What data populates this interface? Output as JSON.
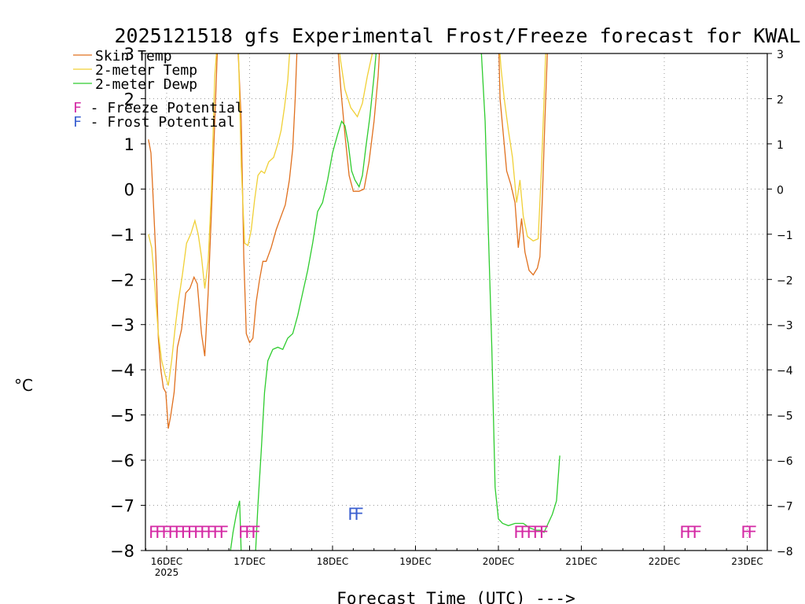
{
  "chart_data": {
    "type": "line",
    "title": "2025121518 gfs Experimental Frost/Freeze forecast for KWAL",
    "xlabel": "Forecast Time (UTC) --->",
    "ylabel": "°C",
    "ylim": [
      -8,
      3
    ],
    "xlim": [
      -0.2,
      7.3
    ],
    "y_ticks": [
      -8,
      -7,
      -6,
      -5,
      -4,
      -3,
      -2,
      -1,
      0,
      1,
      2,
      3
    ],
    "y_tick_labels": [
      "−8",
      "−7",
      "−6",
      "−5",
      "−4",
      "−3",
      "−2",
      "−1",
      "0",
      "1",
      "2",
      "3"
    ],
    "x_ticks": [
      {
        "label": "16DEC",
        "x": 0.0
      },
      {
        "label": "17DEC",
        "x": 1.0
      },
      {
        "label": "18DEC",
        "x": 2.0
      },
      {
        "label": "19DEC",
        "x": 3.0
      },
      {
        "label": "20DEC",
        "x": 4.0
      },
      {
        "label": "21DEC",
        "x": 5.0
      },
      {
        "label": "22DEC",
        "x": 6.0
      },
      {
        "label": "23DEC",
        "x": 7.0
      }
    ],
    "year_label": "2025",
    "grid": true,
    "legend_position": "top-left",
    "series": [
      {
        "name": "Skin Temp",
        "color": "#e0701e",
        "points": [
          [
            -0.22,
            1.1
          ],
          [
            -0.19,
            0.8
          ],
          [
            -0.16,
            -0.3
          ],
          [
            -0.13,
            -1.5
          ],
          [
            -0.1,
            -3.3
          ],
          [
            -0.07,
            -4.0
          ],
          [
            -0.04,
            -4.4
          ],
          [
            -0.01,
            -4.5
          ],
          [
            0.02,
            -5.3
          ],
          [
            0.05,
            -5.0
          ],
          [
            0.09,
            -4.5
          ],
          [
            0.13,
            -3.5
          ],
          [
            0.18,
            -3.1
          ],
          [
            0.23,
            -2.3
          ],
          [
            0.28,
            -2.2
          ],
          [
            0.33,
            -1.95
          ],
          [
            0.37,
            -2.1
          ],
          [
            0.42,
            -3.2
          ],
          [
            0.46,
            -3.7
          ],
          [
            0.5,
            -2.3
          ],
          [
            0.54,
            -0.5
          ],
          [
            0.58,
            1.5
          ],
          [
            0.62,
            3.5
          ],
          [
            0.85,
            3.5
          ],
          [
            0.9,
            1.5
          ],
          [
            0.93,
            -1.5
          ],
          [
            0.96,
            -3.2
          ],
          [
            1.0,
            -3.4
          ],
          [
            1.04,
            -3.3
          ],
          [
            1.08,
            -2.5
          ],
          [
            1.12,
            -2.0
          ],
          [
            1.16,
            -1.6
          ],
          [
            1.2,
            -1.6
          ],
          [
            1.26,
            -1.3
          ],
          [
            1.32,
            -0.9
          ],
          [
            1.38,
            -0.6
          ],
          [
            1.43,
            -0.35
          ],
          [
            1.48,
            0.2
          ],
          [
            1.52,
            0.9
          ],
          [
            1.55,
            2.0
          ],
          [
            1.58,
            3.5
          ],
          [
            2.05,
            3.5
          ],
          [
            2.1,
            2.2
          ],
          [
            2.15,
            1.2
          ],
          [
            2.2,
            0.3
          ],
          [
            2.25,
            -0.05
          ],
          [
            2.32,
            -0.05
          ],
          [
            2.38,
            0.0
          ],
          [
            2.44,
            0.6
          ],
          [
            2.5,
            1.5
          ],
          [
            2.55,
            2.5
          ],
          [
            2.58,
            3.5
          ],
          [
            4.0,
            3.5
          ],
          [
            4.02,
            2.0
          ],
          [
            4.06,
            1.2
          ],
          [
            4.1,
            0.4
          ],
          [
            4.15,
            0.1
          ],
          [
            4.2,
            -0.3
          ],
          [
            4.24,
            -1.3
          ],
          [
            4.28,
            -0.65
          ],
          [
            4.32,
            -1.4
          ],
          [
            4.37,
            -1.8
          ],
          [
            4.42,
            -1.9
          ],
          [
            4.47,
            -1.75
          ],
          [
            4.5,
            -1.5
          ],
          [
            4.53,
            -0.2
          ],
          [
            4.56,
            1.5
          ],
          [
            4.6,
            3.5
          ]
        ]
      },
      {
        "name": "2-meter Temp",
        "color": "#f0d036",
        "points": [
          [
            -0.22,
            -1.0
          ],
          [
            -0.18,
            -1.3
          ],
          [
            -0.14,
            -2.2
          ],
          [
            -0.1,
            -3.2
          ],
          [
            -0.06,
            -3.8
          ],
          [
            -0.02,
            -4.1
          ],
          [
            0.02,
            -4.35
          ],
          [
            0.06,
            -3.8
          ],
          [
            0.1,
            -3.1
          ],
          [
            0.14,
            -2.5
          ],
          [
            0.19,
            -1.9
          ],
          [
            0.24,
            -1.2
          ],
          [
            0.29,
            -1.0
          ],
          [
            0.34,
            -0.7
          ],
          [
            0.38,
            -1.0
          ],
          [
            0.42,
            -1.5
          ],
          [
            0.46,
            -2.2
          ],
          [
            0.5,
            -1.6
          ],
          [
            0.54,
            0.0
          ],
          [
            0.58,
            2.5
          ],
          [
            0.62,
            3.5
          ],
          [
            0.86,
            3.5
          ],
          [
            0.9,
            0.5
          ],
          [
            0.94,
            -1.2
          ],
          [
            0.98,
            -1.25
          ],
          [
            1.02,
            -0.9
          ],
          [
            1.06,
            -0.25
          ],
          [
            1.1,
            0.3
          ],
          [
            1.14,
            0.4
          ],
          [
            1.18,
            0.35
          ],
          [
            1.23,
            0.6
          ],
          [
            1.29,
            0.7
          ],
          [
            1.34,
            1.0
          ],
          [
            1.38,
            1.3
          ],
          [
            1.42,
            1.8
          ],
          [
            1.46,
            2.4
          ],
          [
            1.5,
            3.5
          ],
          [
            2.05,
            3.5
          ],
          [
            2.1,
            2.8
          ],
          [
            2.15,
            2.2
          ],
          [
            2.22,
            1.8
          ],
          [
            2.3,
            1.6
          ],
          [
            2.36,
            1.9
          ],
          [
            2.42,
            2.5
          ],
          [
            2.48,
            3.0
          ],
          [
            2.52,
            3.5
          ],
          [
            4.0,
            3.5
          ],
          [
            4.03,
            2.7
          ],
          [
            4.07,
            2.0
          ],
          [
            4.12,
            1.3
          ],
          [
            4.17,
            0.7
          ],
          [
            4.22,
            -0.3
          ],
          [
            4.26,
            0.2
          ],
          [
            4.3,
            -0.6
          ],
          [
            4.35,
            -1.05
          ],
          [
            4.42,
            -1.15
          ],
          [
            4.48,
            -1.1
          ],
          [
            4.52,
            0.5
          ],
          [
            4.56,
            2.5
          ],
          [
            4.58,
            3.5
          ]
        ]
      },
      {
        "name": "2-meter Dewp",
        "color": "#2ecc2e",
        "points": [
          [
            0.77,
            -8.0
          ],
          [
            0.8,
            -7.6
          ],
          [
            0.84,
            -7.2
          ],
          [
            0.88,
            -6.9
          ],
          [
            0.9,
            -8.1
          ],
          [
            1.07,
            -8.1
          ],
          [
            1.1,
            -7.0
          ],
          [
            1.14,
            -5.8
          ],
          [
            1.18,
            -4.5
          ],
          [
            1.22,
            -3.8
          ],
          [
            1.28,
            -3.55
          ],
          [
            1.34,
            -3.5
          ],
          [
            1.4,
            -3.55
          ],
          [
            1.46,
            -3.3
          ],
          [
            1.52,
            -3.2
          ],
          [
            1.58,
            -2.8
          ],
          [
            1.64,
            -2.3
          ],
          [
            1.7,
            -1.8
          ],
          [
            1.76,
            -1.2
          ],
          [
            1.82,
            -0.5
          ],
          [
            1.88,
            -0.3
          ],
          [
            1.94,
            0.2
          ],
          [
            2.0,
            0.8
          ],
          [
            2.06,
            1.2
          ],
          [
            2.11,
            1.5
          ],
          [
            2.15,
            1.4
          ],
          [
            2.19,
            1.0
          ],
          [
            2.23,
            0.4
          ],
          [
            2.27,
            0.2
          ],
          [
            2.32,
            0.05
          ],
          [
            2.36,
            0.3
          ],
          [
            2.4,
            0.9
          ],
          [
            2.45,
            1.6
          ],
          [
            2.5,
            2.5
          ],
          [
            2.55,
            3.5
          ],
          [
            3.78,
            3.5
          ],
          [
            3.84,
            1.5
          ],
          [
            3.88,
            -1.0
          ],
          [
            3.92,
            -3.5
          ],
          [
            3.96,
            -6.6
          ],
          [
            4.0,
            -7.3
          ],
          [
            4.05,
            -7.4
          ],
          [
            4.12,
            -7.45
          ],
          [
            4.2,
            -7.4
          ],
          [
            4.3,
            -7.4
          ],
          [
            4.38,
            -7.5
          ],
          [
            4.45,
            -7.55
          ],
          [
            4.5,
            -7.55
          ],
          [
            4.55,
            -7.6
          ],
          [
            4.6,
            -7.4
          ],
          [
            4.65,
            -7.2
          ],
          [
            4.7,
            -6.9
          ],
          [
            4.74,
            -5.9
          ]
        ]
      }
    ],
    "legend": {
      "series_entries": [
        "Skin Temp",
        "2-meter Temp",
        "2-meter Dewp"
      ],
      "flag_entries": [
        {
          "letter": "F",
          "text": " - Freeze Potential",
          "color": "#d42aa4"
        },
        {
          "letter": "F",
          "text": " - Frost Potential",
          "color": "#3a5fd0"
        }
      ]
    },
    "markers": [
      {
        "label": "FFFFFFFFFFFF",
        "x": -0.22,
        "y": -7.55,
        "color": "#d42aa4",
        "kind": "Freeze Potential"
      },
      {
        "label": "FFF",
        "x": 0.86,
        "y": -7.55,
        "color": "#d42aa4",
        "kind": "Freeze Potential"
      },
      {
        "label": "FF",
        "x": 2.18,
        "y": -7.15,
        "color": "#3a5fd0",
        "kind": "Frost Potential"
      },
      {
        "label": "FFFFF",
        "x": 4.18,
        "y": -7.55,
        "color": "#d42aa4",
        "kind": "Freeze Potential"
      },
      {
        "label": "FFF",
        "x": 6.18,
        "y": -7.55,
        "color": "#d42aa4",
        "kind": "Freeze Potential"
      },
      {
        "label": "FF",
        "x": 6.92,
        "y": -7.55,
        "color": "#d42aa4",
        "kind": "Freeze Potential"
      }
    ]
  }
}
